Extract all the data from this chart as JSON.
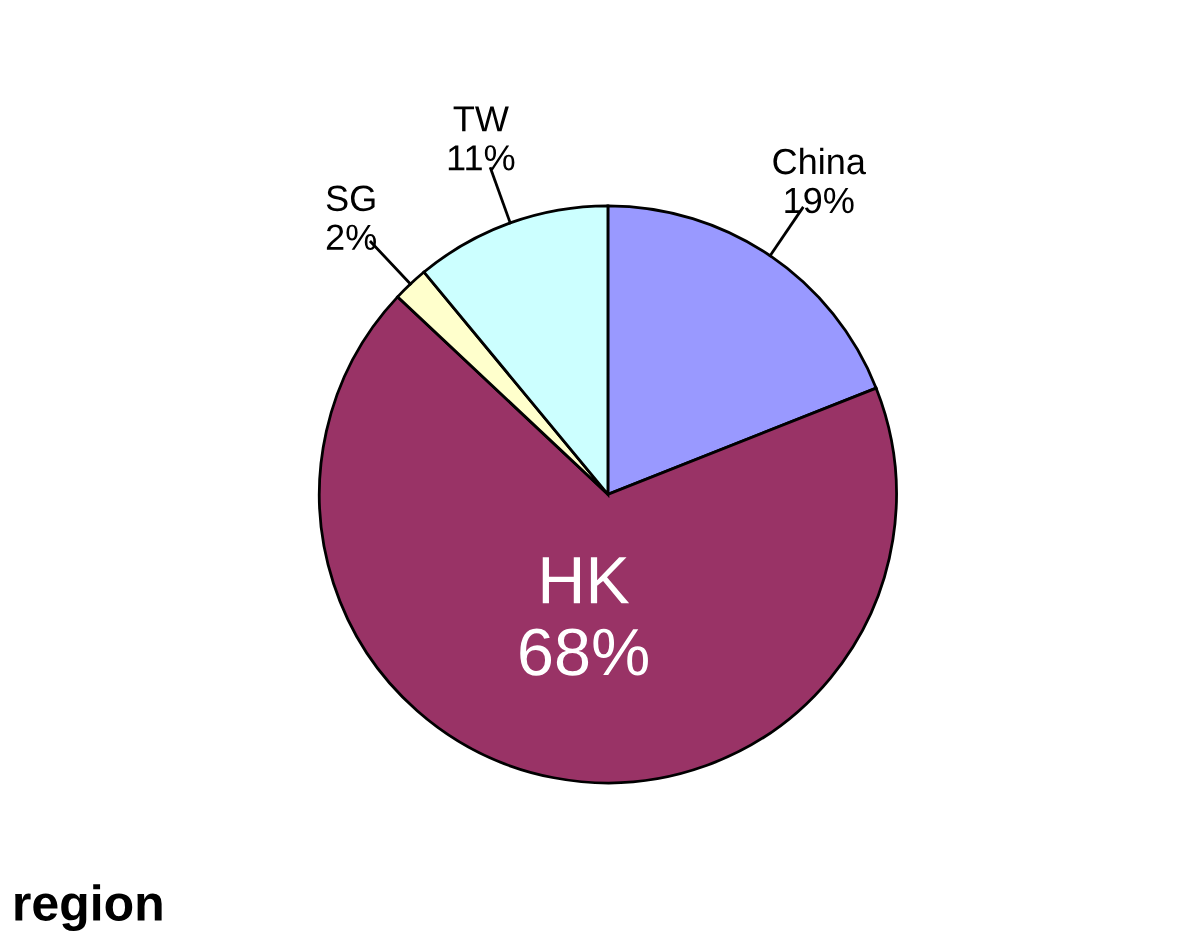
{
  "chart_data": {
    "type": "pie",
    "title": "region",
    "categories": [
      "China",
      "HK",
      "SG",
      "TW"
    ],
    "values": [
      19,
      68,
      2,
      11
    ],
    "value_labels": [
      "19%",
      "68%",
      "2%",
      "11%"
    ],
    "colors": [
      "#9999ff",
      "#993366",
      "#ffffcc",
      "#ccffff"
    ]
  }
}
